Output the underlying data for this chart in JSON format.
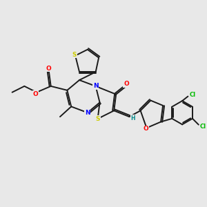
{
  "bg_color": "#e8e8e8",
  "bond_color": "#1a1a1a",
  "bond_width": 1.4,
  "atom_colors": {
    "S": "#cccc00",
    "N": "#0000ff",
    "O": "#ff0000",
    "Cl": "#00bb00",
    "H": "#008888",
    "C": "#1a1a1a"
  },
  "figsize": [
    3.0,
    3.0
  ],
  "dpi": 100
}
